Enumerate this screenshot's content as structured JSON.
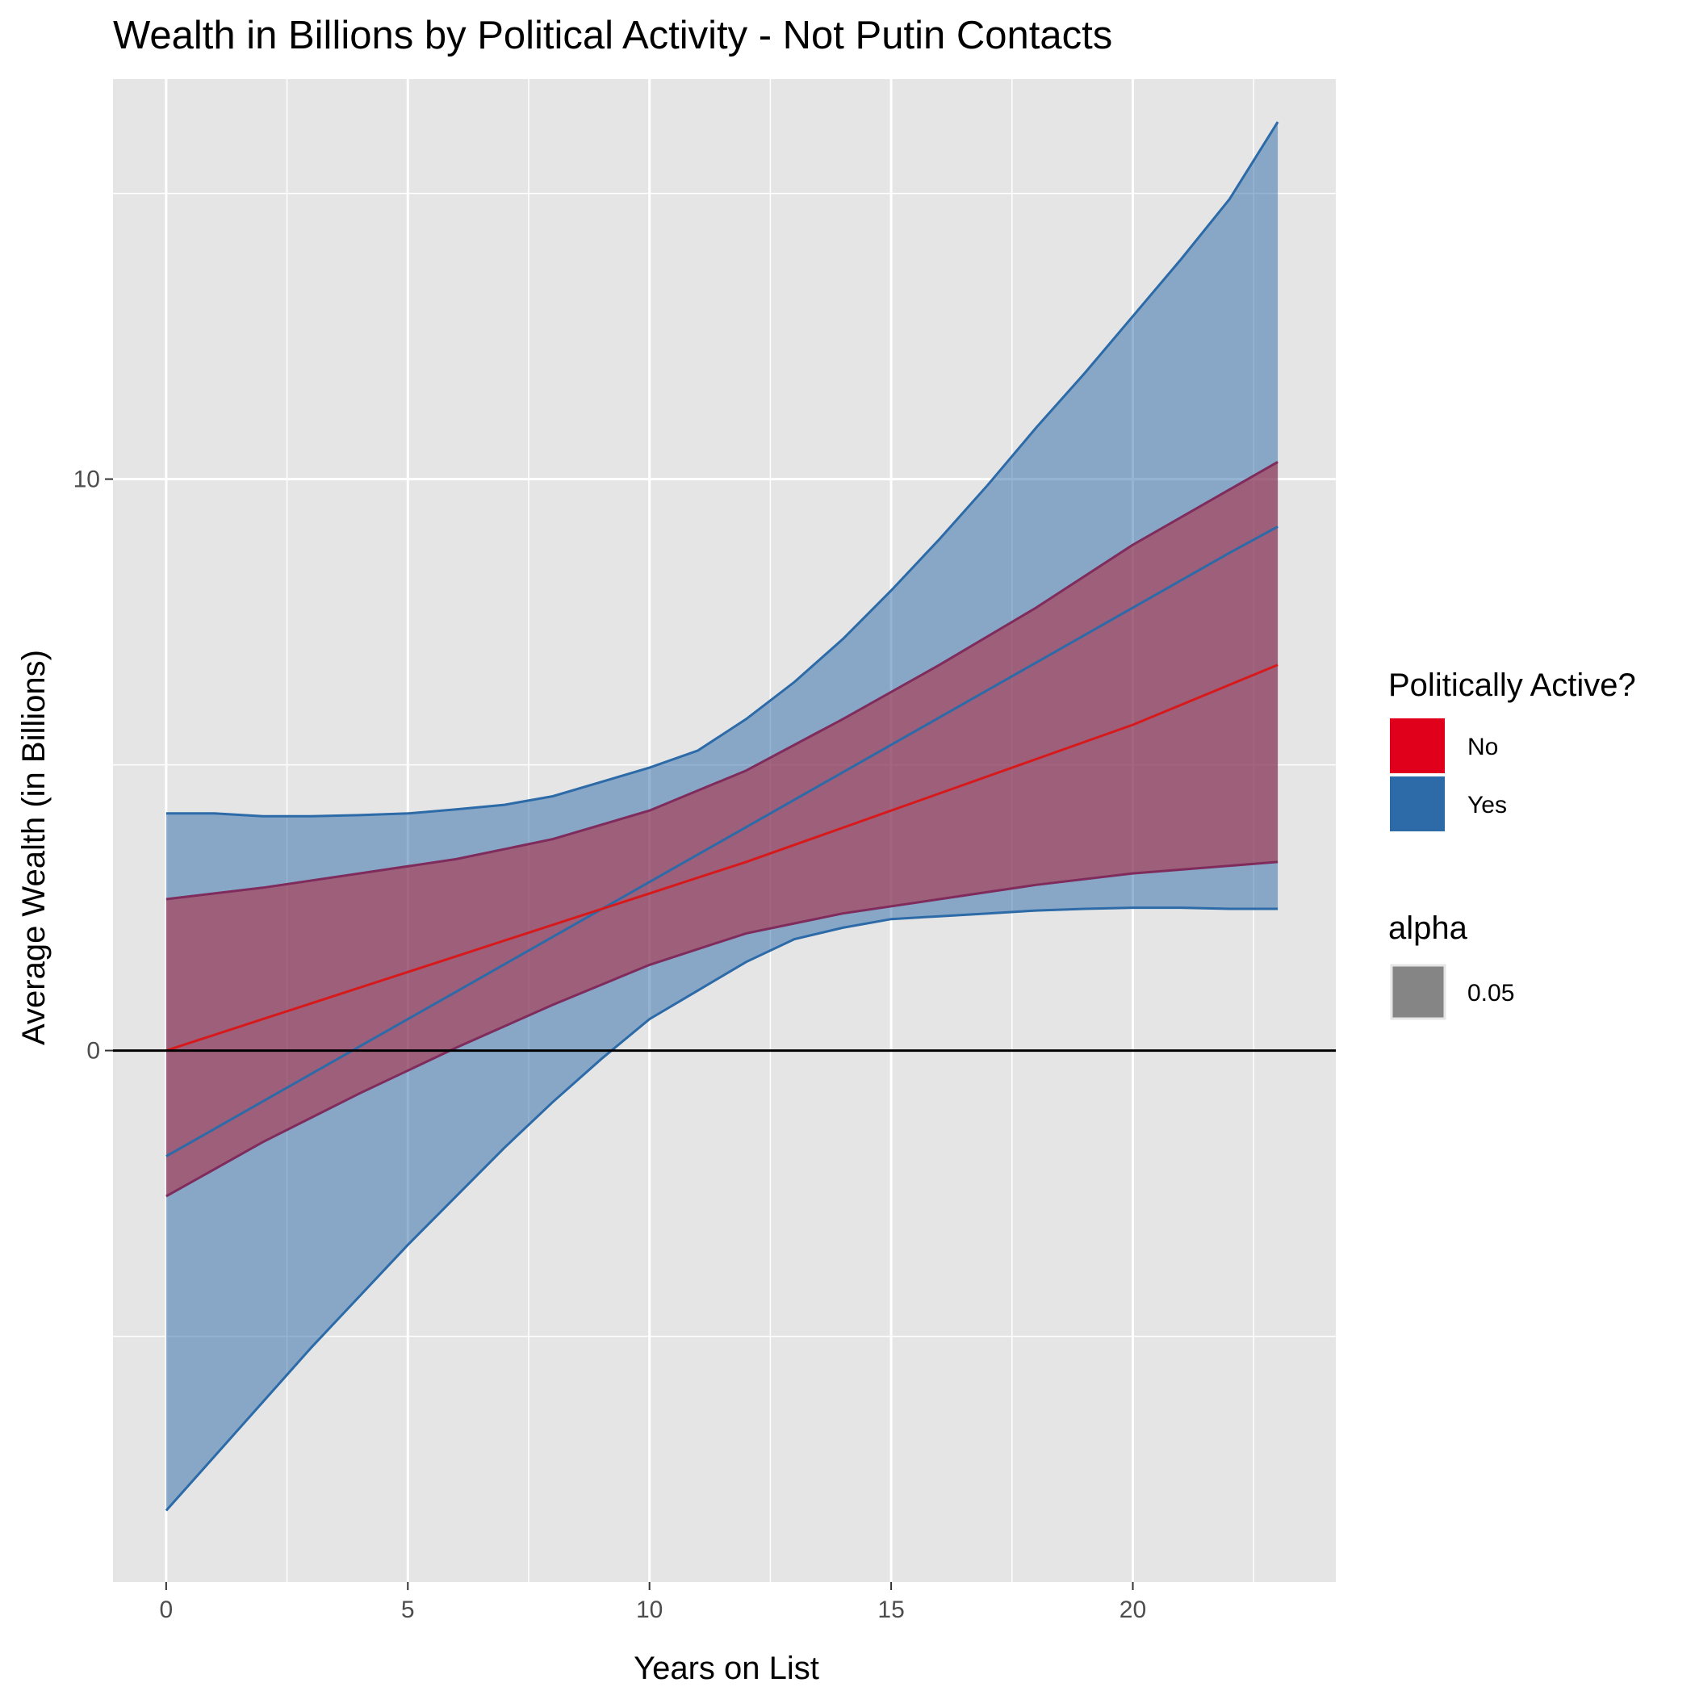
{
  "chart_data": {
    "type": "area",
    "title": "Wealth in Billions by Political Activity - Not Putin Contacts",
    "xlabel": "Years on List",
    "ylabel": "Average Wealth (in Billions)",
    "xlim": [
      -1.1,
      24.2
    ],
    "ylim": [
      -9.3,
      17.0
    ],
    "x_ticks": [
      0,
      5,
      10,
      15,
      20
    ],
    "x_tick_labels": [
      "0",
      "5",
      "10",
      "15",
      "20"
    ],
    "y_ticks": [
      0,
      10
    ],
    "y_tick_labels": [
      "0",
      "10"
    ],
    "grid": true,
    "reference_line_y": 0,
    "legend_position": "right",
    "legend": {
      "fill_title": "Politically Active?",
      "fill_items": [
        {
          "label": "No",
          "color": "#e0001b"
        },
        {
          "label": "Yes",
          "color": "#2d6aa8"
        }
      ],
      "alpha_title": "alpha",
      "alpha_items": [
        {
          "label": "0.05",
          "color": "#858585"
        }
      ]
    },
    "series": [
      {
        "name": "No",
        "color": "#d7191c",
        "band_color": "#7f2c5d",
        "fill": "#b2182b",
        "x": [
          0,
          2,
          4,
          6,
          8,
          10,
          12,
          14,
          16,
          18,
          20,
          23
        ],
        "fit": [
          0.0,
          0.55,
          1.1,
          1.65,
          2.2,
          2.75,
          3.3,
          3.9,
          4.5,
          5.1,
          5.7,
          6.75
        ],
        "lower": [
          -2.55,
          -1.6,
          -0.75,
          0.05,
          0.8,
          1.5,
          2.05,
          2.4,
          2.65,
          2.9,
          3.1,
          3.3
        ],
        "upper": [
          2.65,
          2.85,
          3.1,
          3.35,
          3.7,
          4.2,
          4.9,
          5.8,
          6.75,
          7.75,
          8.85,
          10.3
        ]
      },
      {
        "name": "Yes",
        "color": "#2c6aa8",
        "band_color": "#2c6aa8",
        "fill": "#2c6aa8",
        "x": [
          0,
          1,
          2,
          3,
          4,
          5,
          6,
          7,
          8,
          9,
          10,
          11,
          12,
          13,
          14,
          15,
          16,
          17,
          18,
          19,
          20,
          21,
          22,
          23
        ],
        "fit": [
          -1.85,
          -1.37,
          -0.89,
          -0.41,
          0.07,
          0.55,
          1.03,
          1.51,
          1.99,
          2.47,
          2.95,
          3.43,
          3.91,
          4.39,
          4.87,
          5.35,
          5.83,
          6.31,
          6.79,
          7.27,
          7.75,
          8.23,
          8.71,
          9.17
        ],
        "lower": [
          -8.05,
          -7.1,
          -6.15,
          -5.2,
          -4.3,
          -3.4,
          -2.55,
          -1.7,
          -0.9,
          -0.15,
          0.55,
          1.05,
          1.55,
          1.95,
          2.15,
          2.3,
          2.35,
          2.4,
          2.45,
          2.48,
          2.5,
          2.5,
          2.48,
          2.48
        ],
        "upper": [
          4.15,
          4.15,
          4.1,
          4.1,
          4.12,
          4.15,
          4.22,
          4.3,
          4.45,
          4.7,
          4.95,
          5.25,
          5.8,
          6.45,
          7.2,
          8.05,
          8.95,
          9.9,
          10.9,
          11.85,
          12.85,
          13.85,
          14.9,
          16.25
        ]
      }
    ]
  }
}
